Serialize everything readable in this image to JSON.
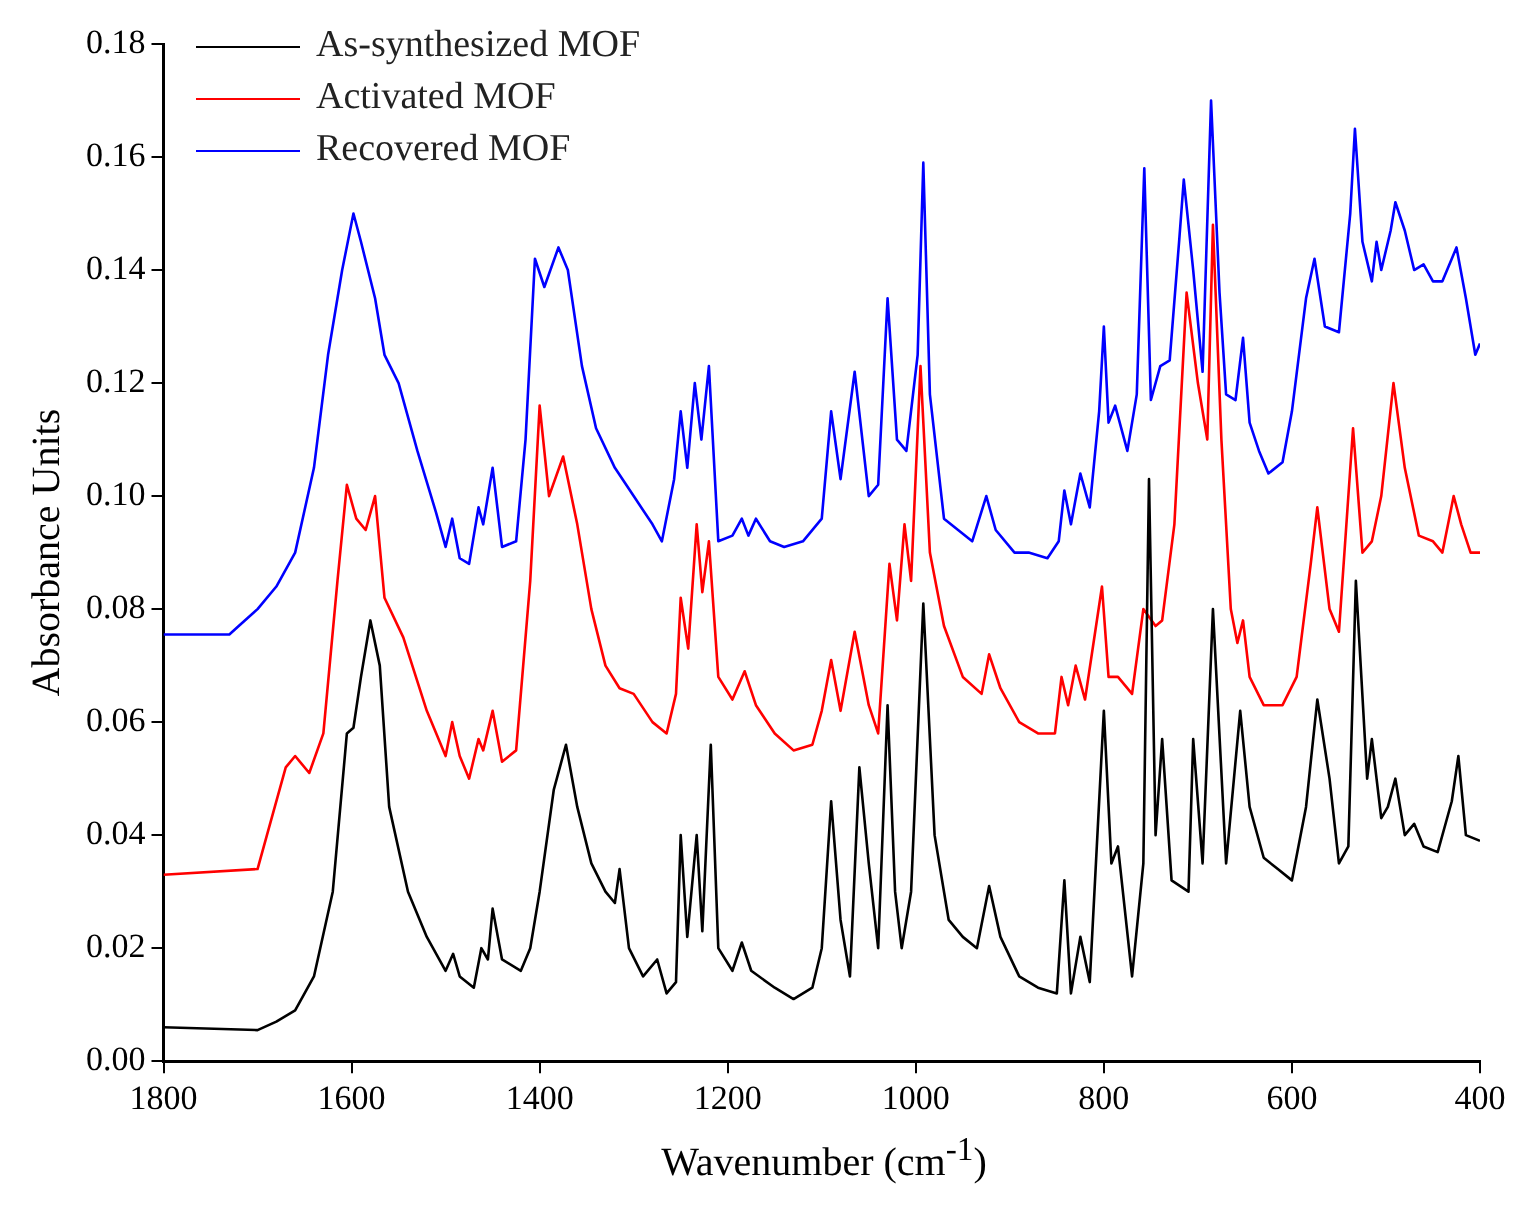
{
  "chart_data": {
    "type": "line",
    "xlabel": "Wavenumber (cm$^{-1}$)",
    "ylabel": "Absorbance Units",
    "xlim": [
      1800,
      400
    ],
    "xticks": [
      1800,
      1600,
      1400,
      1200,
      1000,
      800,
      600,
      400
    ],
    "ylim": [
      0,
      0.18
    ],
    "yticks": [
      {
        "value": 0,
        "label": "0.00"
      },
      {
        "value": 0.02,
        "label": "0.02"
      },
      {
        "value": 0.04,
        "label": "0.04"
      },
      {
        "value": 0.06,
        "label": "0.06"
      },
      {
        "value": 0.08,
        "label": "0.08"
      },
      {
        "value": 0.1,
        "label": "0.10"
      },
      {
        "value": 0.12,
        "label": "0.12"
      },
      {
        "value": 0.14,
        "label": "0.14"
      },
      {
        "value": 0.16,
        "label": "0.16"
      },
      {
        "value": 0.18,
        "label": "0.18"
      }
    ],
    "grid": false,
    "legend": "top left",
    "marker": "none",
    "line_style": "solid",
    "series": [
      {
        "name": "As-synthesized MOF",
        "color": "#000000",
        "x": [
          1800,
          1700,
          1680,
          1660,
          1640,
          1620,
          1605,
          1598,
          1590,
          1580,
          1570,
          1560,
          1540,
          1520,
          1500,
          1492,
          1485,
          1470,
          1462,
          1455,
          1450,
          1440,
          1420,
          1410,
          1400,
          1385,
          1372,
          1360,
          1345,
          1330,
          1320,
          1315,
          1305,
          1290,
          1275,
          1265,
          1255,
          1250,
          1243,
          1233,
          1227,
          1218,
          1210,
          1195,
          1185,
          1175,
          1150,
          1130,
          1110,
          1100,
          1090,
          1080,
          1070,
          1060,
          1050,
          1040,
          1030,
          1022,
          1015,
          1005,
          992,
          980,
          965,
          950,
          935,
          922,
          910,
          890,
          870,
          850,
          842,
          835,
          825,
          815,
          800,
          792,
          785,
          770,
          758,
          752,
          745,
          738,
          728,
          710,
          705,
          695,
          684,
          670,
          655,
          645,
          630,
          615,
          600,
          585,
          573,
          560,
          550,
          540,
          532,
          520,
          515,
          505,
          498,
          490,
          480,
          470,
          460,
          445,
          430,
          423,
          415,
          400
        ],
        "values": [
          0.006,
          0.0055,
          0.007,
          0.009,
          0.015,
          0.03,
          0.058,
          0.059,
          0.068,
          0.078,
          0.07,
          0.045,
          0.03,
          0.022,
          0.016,
          0.019,
          0.015,
          0.013,
          0.02,
          0.018,
          0.027,
          0.018,
          0.016,
          0.02,
          0.03,
          0.048,
          0.056,
          0.045,
          0.035,
          0.03,
          0.028,
          0.034,
          0.02,
          0.015,
          0.018,
          0.012,
          0.014,
          0.04,
          0.022,
          0.04,
          0.023,
          0.056,
          0.02,
          0.016,
          0.021,
          0.016,
          0.013,
          0.011,
          0.013,
          0.02,
          0.046,
          0.025,
          0.015,
          0.052,
          0.035,
          0.02,
          0.063,
          0.03,
          0.02,
          0.03,
          0.081,
          0.04,
          0.025,
          0.022,
          0.02,
          0.031,
          0.022,
          0.015,
          0.013,
          0.012,
          0.032,
          0.012,
          0.022,
          0.014,
          0.062,
          0.035,
          0.038,
          0.015,
          0.035,
          0.103,
          0.04,
          0.057,
          0.032,
          0.03,
          0.057,
          0.035,
          0.08,
          0.035,
          0.062,
          0.045,
          0.036,
          0.034,
          0.032,
          0.045,
          0.064,
          0.05,
          0.035,
          0.038,
          0.085,
          0.05,
          0.057,
          0.043,
          0.045,
          0.05,
          0.04,
          0.042,
          0.038,
          0.037,
          0.046,
          0.054,
          0.04,
          0.039
        ]
      },
      {
        "name": "Activated MOF",
        "color": "#ff0000",
        "x": [
          1800,
          1700,
          1690,
          1670,
          1660,
          1645,
          1630,
          1615,
          1605,
          1595,
          1585,
          1575,
          1565,
          1545,
          1520,
          1500,
          1493,
          1485,
          1475,
          1465,
          1460,
          1450,
          1440,
          1425,
          1410,
          1400,
          1390,
          1375,
          1360,
          1345,
          1330,
          1315,
          1300,
          1280,
          1265,
          1255,
          1250,
          1242,
          1233,
          1227,
          1220,
          1210,
          1195,
          1182,
          1170,
          1150,
          1130,
          1110,
          1100,
          1090,
          1080,
          1065,
          1050,
          1040,
          1028,
          1020,
          1012,
          1005,
          995,
          985,
          970,
          950,
          930,
          922,
          910,
          890,
          870,
          852,
          845,
          838,
          830,
          820,
          802,
          795,
          785,
          770,
          758,
          752,
          745,
          738,
          725,
          712,
          700,
          690,
          684,
          675,
          665,
          658,
          652,
          645,
          630,
          610,
          595,
          580,
          573,
          560,
          550,
          535,
          525,
          515,
          505,
          492,
          480,
          465,
          450,
          440,
          428,
          420,
          410,
          400
        ],
        "values": [
          0.033,
          0.034,
          0.04,
          0.052,
          0.054,
          0.051,
          0.058,
          0.085,
          0.102,
          0.096,
          0.094,
          0.1,
          0.082,
          0.075,
          0.062,
          0.054,
          0.06,
          0.054,
          0.05,
          0.057,
          0.055,
          0.062,
          0.053,
          0.055,
          0.085,
          0.116,
          0.1,
          0.107,
          0.095,
          0.08,
          0.07,
          0.066,
          0.065,
          0.06,
          0.058,
          0.065,
          0.082,
          0.073,
          0.095,
          0.083,
          0.092,
          0.068,
          0.064,
          0.069,
          0.063,
          0.058,
          0.055,
          0.056,
          0.062,
          0.071,
          0.062,
          0.076,
          0.063,
          0.058,
          0.088,
          0.078,
          0.095,
          0.085,
          0.123,
          0.09,
          0.077,
          0.068,
          0.065,
          0.072,
          0.066,
          0.06,
          0.058,
          0.058,
          0.068,
          0.063,
          0.07,
          0.064,
          0.084,
          0.068,
          0.068,
          0.065,
          0.08,
          null,
          0.077,
          0.078,
          0.095,
          0.136,
          0.12,
          0.11,
          0.148,
          0.11,
          0.08,
          0.074,
          0.078,
          0.068,
          0.063,
          0.063,
          0.068,
          0.088,
          0.098,
          0.08,
          0.076,
          0.112,
          0.09,
          0.092,
          0.1,
          0.12,
          0.105,
          0.093,
          0.092,
          0.09,
          0.1,
          0.095,
          0.09,
          0.09
        ]
      },
      {
        "name": "Recovered MOF",
        "color": "#0000ff",
        "x": [
          1800,
          1730,
          1720,
          1700,
          1680,
          1660,
          1640,
          1625,
          1610,
          1598,
          1590,
          1575,
          1565,
          1550,
          1530,
          1510,
          1500,
          1493,
          1485,
          1475,
          1465,
          1460,
          1450,
          1440,
          1425,
          1415,
          1405,
          1395,
          1380,
          1370,
          1355,
          1340,
          1320,
          1300,
          1280,
          1270,
          1257,
          1250,
          1243,
          1235,
          1228,
          1220,
          1210,
          1195,
          1185,
          1178,
          1170,
          1155,
          1140,
          1120,
          1100,
          1090,
          1080,
          1065,
          1050,
          1040,
          1030,
          1020,
          1010,
          998,
          992,
          985,
          970,
          955,
          940,
          925,
          915,
          895,
          880,
          860,
          848,
          842,
          835,
          825,
          815,
          805,
          800,
          795,
          788,
          775,
          765,
          757,
          750,
          740,
          730,
          720,
          715,
          705,
          695,
          686,
          677,
          670,
          660,
          652,
          645,
          635,
          625,
          610,
          600,
          585,
          576,
          565,
          550,
          538,
          533,
          525,
          515,
          510,
          505,
          495,
          490,
          480,
          470,
          460,
          450,
          440,
          430,
          425,
          415,
          405,
          400
        ],
        "values": [
          0.0755,
          0.0755,
          0.077,
          0.08,
          0.084,
          0.09,
          0.105,
          0.125,
          0.14,
          0.15,
          0.145,
          0.135,
          0.125,
          0.12,
          0.108,
          0.097,
          0.091,
          0.096,
          0.089,
          0.088,
          0.098,
          0.095,
          0.105,
          0.091,
          0.092,
          0.11,
          0.142,
          0.137,
          0.144,
          0.14,
          0.123,
          0.112,
          0.105,
          0.1,
          0.095,
          0.092,
          0.103,
          0.115,
          0.105,
          0.12,
          0.11,
          0.123,
          0.092,
          0.093,
          0.096,
          0.093,
          0.096,
          0.092,
          0.091,
          0.092,
          0.096,
          0.115,
          0.103,
          0.122,
          0.1,
          0.102,
          0.135,
          0.11,
          0.108,
          0.125,
          0.159,
          0.118,
          0.096,
          0.094,
          0.092,
          0.1,
          0.094,
          0.09,
          0.09,
          0.089,
          0.092,
          0.101,
          0.095,
          0.104,
          0.098,
          0.115,
          0.13,
          0.113,
          0.116,
          0.108,
          0.118,
          0.158,
          0.117,
          0.123,
          0.124,
          0.145,
          0.156,
          0.14,
          0.122,
          0.17,
          0.136,
          0.118,
          0.117,
          0.128,
          0.113,
          0.108,
          0.104,
          0.106,
          0.115,
          0.135,
          0.142,
          0.13,
          0.129,
          0.15,
          0.165,
          0.145,
          0.138,
          0.145,
          0.14,
          0.147,
          0.152,
          0.147,
          0.14,
          0.141,
          0.138,
          0.138,
          0.142,
          0.144,
          0.135,
          0.125,
          0.127
        ]
      }
    ]
  }
}
